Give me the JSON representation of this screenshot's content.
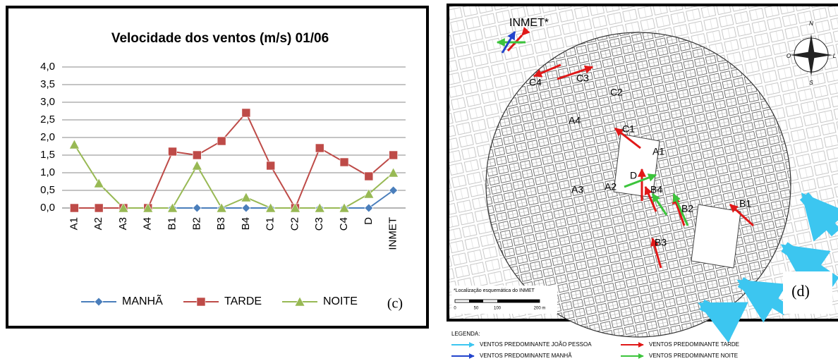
{
  "chart_data": {
    "type": "line",
    "title": "Velocidade dos ventos (m/s) 01/06",
    "panel_label": "(c)",
    "categories": [
      "A1",
      "A2",
      "A3",
      "A4",
      "B1",
      "B2",
      "B3",
      "B4",
      "C1",
      "C2",
      "C3",
      "C4",
      "D",
      "INMET"
    ],
    "series": [
      {
        "name": "MANHÃ",
        "color": "#4a7ebb",
        "marker": "diamond",
        "values": [
          0,
          0,
          0,
          0,
          0,
          0,
          0,
          0,
          0,
          0,
          0,
          0,
          0,
          0.5
        ]
      },
      {
        "name": "TARDE",
        "color": "#be4b48",
        "marker": "square",
        "values": [
          0,
          0,
          0,
          0,
          1.6,
          1.5,
          1.9,
          2.7,
          1.2,
          0,
          1.7,
          1.3,
          0.9,
          1.5
        ]
      },
      {
        "name": "NOITE",
        "color": "#98b954",
        "marker": "triangle",
        "values": [
          1.8,
          0.7,
          0,
          0,
          0,
          1.2,
          0,
          0.3,
          0,
          0,
          0,
          0,
          0.4,
          1.0
        ]
      }
    ],
    "ylim": [
      0,
      4
    ],
    "yticks": [
      {
        "value": 0,
        "label": "0,0"
      },
      {
        "value": 0.5,
        "label": "0,5"
      },
      {
        "value": 1,
        "label": "1,0"
      },
      {
        "value": 1.5,
        "label": "1,5"
      },
      {
        "value": 2,
        "label": "2,0"
      },
      {
        "value": 2.5,
        "label": "2,5"
      },
      {
        "value": 3,
        "label": "3,0"
      },
      {
        "value": 3.5,
        "label": "3,5"
      },
      {
        "value": 4,
        "label": "4,0"
      }
    ],
    "grid": true,
    "legend": "bottom"
  },
  "map": {
    "panel_label": "(d)",
    "inmet_label": "INMET*",
    "points": [
      "C4",
      "C3",
      "C2",
      "A4",
      "C1",
      "A1",
      "D",
      "B4",
      "A2",
      "A3",
      "B2",
      "B1",
      "B3"
    ],
    "note": "*Localização esquemática do INMET",
    "scale": [
      "0",
      "50",
      "100",
      "200 m"
    ],
    "compass": [
      "N",
      "L",
      "O",
      "S"
    ],
    "legend": {
      "title": "LEGENDA:",
      "items": [
        "VENTOS PREDOMINANTE JOÃO PESSOA",
        "VENTOS PREDOMINANTE TARDE",
        "VENTOS PREDOMINANTE MANHÃ",
        "VENTOS PREDOMINANTE NOITE"
      ]
    }
  }
}
